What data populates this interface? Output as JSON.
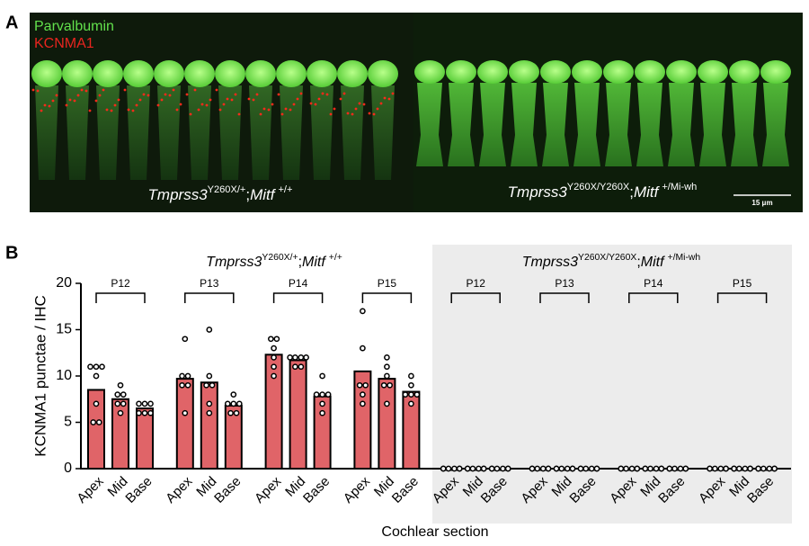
{
  "panel_a": {
    "label": "A",
    "legend": [
      {
        "text": "Parvalbumin",
        "color": "#62e04c"
      },
      {
        "text": "KCNMA1",
        "color": "#e8251f"
      }
    ],
    "images": [
      {
        "gene": "Tmprss3",
        "gene_sup": "Y260X/+",
        "separator": ";",
        "mitf": "Mitf",
        "mitf_sup": "+/+"
      },
      {
        "gene": "Tmprss3",
        "gene_sup": "Y260X/Y260X",
        "separator": ";",
        "mitf": "Mitf",
        "mitf_sup": "+/Mi-wh",
        "scale_bar": "15 μm"
      }
    ]
  },
  "chart_data": {
    "type": "bar",
    "panel_label": "B",
    "y_label": "KCNMA1 punctae / IHC",
    "x_label": "Cochlear section",
    "ylim": [
      0,
      20
    ],
    "yticks": [
      0,
      5,
      10,
      15,
      20
    ],
    "color": "#e06468",
    "genotypes": [
      {
        "gene": "Tmprss3",
        "gene_sup": "Y260X/+",
        "separator": ";",
        "mitf": "Mitf",
        "mitf_sup": "+/+",
        "shaded": false,
        "groups": [
          {
            "label": "P12",
            "categories": [
              "Apex",
              "Mid",
              "Base"
            ],
            "values": [
              8.5,
              7.5,
              6.5
            ],
            "points": [
              [
                11,
                11,
                11,
                10,
                7,
                5,
                5
              ],
              [
                9,
                8,
                8,
                7,
                7,
                6
              ],
              [
                7,
                7,
                7,
                6,
                6,
                6
              ]
            ]
          },
          {
            "label": "P13",
            "categories": [
              "Apex",
              "Mid",
              "Base"
            ],
            "values": [
              9.7,
              9.3,
              6.8
            ],
            "points": [
              [
                14,
                10,
                10,
                9,
                9,
                6
              ],
              [
                15,
                10,
                9,
                9,
                7,
                6
              ],
              [
                8,
                7,
                7,
                7,
                6,
                6
              ]
            ]
          },
          {
            "label": "P14",
            "categories": [
              "Apex",
              "Mid",
              "Base"
            ],
            "values": [
              12.3,
              11.7,
              7.8
            ],
            "points": [
              [
                14,
                14,
                13,
                12,
                11,
                10
              ],
              [
                12,
                12,
                12,
                12,
                11,
                11
              ],
              [
                10,
                8,
                8,
                8,
                7,
                6
              ]
            ]
          },
          {
            "label": "P15",
            "categories": [
              "Apex",
              "Mid",
              "Base"
            ],
            "values": [
              10.5,
              9.7,
              8.3
            ],
            "points": [
              [
                17,
                13,
                9,
                9,
                8,
                7
              ],
              [
                12,
                11,
                10,
                9,
                9,
                7
              ],
              [
                10,
                9,
                8,
                8,
                8,
                7
              ]
            ]
          }
        ]
      },
      {
        "gene": "Tmprss3",
        "gene_sup": "Y260X/Y260X",
        "separator": ";",
        "mitf": "Mitf",
        "mitf_sup": "+/Mi-wh",
        "shaded": true,
        "groups": [
          {
            "label": "P12",
            "categories": [
              "Apex",
              "Mid",
              "Base"
            ],
            "values": [
              0,
              0,
              0
            ],
            "points": [
              [
                0,
                0,
                0,
                0,
                0,
                0
              ],
              [
                0,
                0,
                0,
                0,
                0,
                0
              ],
              [
                0,
                0,
                0,
                0,
                0,
                0
              ]
            ]
          },
          {
            "label": "P13",
            "categories": [
              "Apex",
              "Mid",
              "Base"
            ],
            "values": [
              0,
              0,
              0
            ],
            "points": [
              [
                0,
                0,
                0,
                0,
                0,
                0
              ],
              [
                0,
                0,
                0,
                0,
                0,
                0
              ],
              [
                0,
                0,
                0,
                0,
                0,
                0
              ]
            ]
          },
          {
            "label": "P14",
            "categories": [
              "Apex",
              "Mid",
              "Base"
            ],
            "values": [
              0,
              0,
              0
            ],
            "points": [
              [
                0,
                0,
                0,
                0,
                0,
                0
              ],
              [
                0,
                0,
                0,
                0,
                0,
                0
              ],
              [
                0,
                0,
                0,
                0,
                0,
                0
              ]
            ]
          },
          {
            "label": "P15",
            "categories": [
              "Apex",
              "Mid",
              "Base"
            ],
            "values": [
              0,
              0,
              0
            ],
            "points": [
              [
                0,
                0,
                0,
                0,
                0,
                0
              ],
              [
                0,
                0,
                0,
                0,
                0,
                0
              ],
              [
                0,
                0,
                0,
                0,
                0,
                0
              ]
            ]
          }
        ]
      }
    ]
  }
}
